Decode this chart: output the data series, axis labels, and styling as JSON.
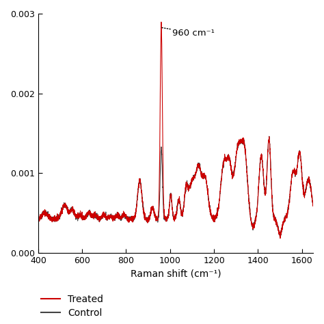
{
  "xlabel": "Raman shift (cm⁻¹)",
  "xlim": [
    400,
    1650
  ],
  "ylim": [
    0,
    0.003
  ],
  "yticks": [
    0,
    0.001,
    0.002,
    0.003
  ],
  "xticks": [
    400,
    600,
    800,
    1000,
    1200,
    1400,
    1600
  ],
  "annotation_text": "960 cm⁻¹",
  "treated_color": "#cc0000",
  "control_color": "#444444",
  "background_color": "#ffffff",
  "legend_treated": "Treated",
  "legend_control": "Control"
}
